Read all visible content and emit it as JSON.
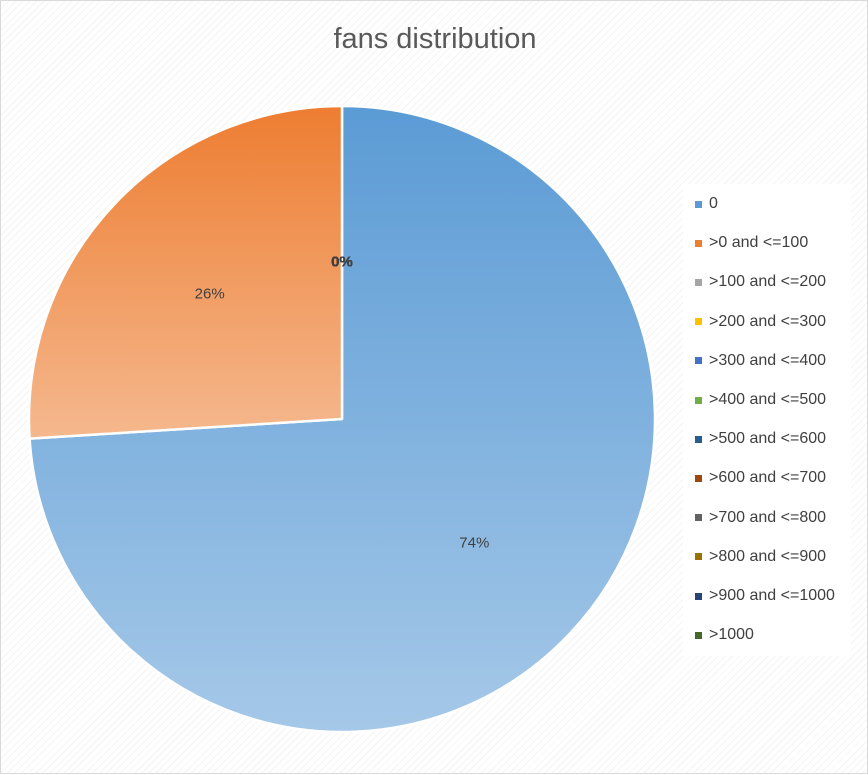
{
  "chart_data": {
    "type": "pie",
    "title": "fans distribution",
    "categories": [
      "0",
      ">0 and <=100",
      ">100 and <=200",
      ">200 and <=300",
      ">300 and <=400",
      ">400 and <=500",
      ">500 and <=600",
      ">600 and <=700",
      ">700 and <=800",
      ">800 and <=900",
      ">900 and <=1000",
      ">1000"
    ],
    "values": [
      74,
      26,
      0,
      0,
      0,
      0,
      0,
      0,
      0,
      0,
      0,
      0
    ],
    "data_labels": [
      "74%",
      "26%",
      "0%",
      "0%",
      "0%",
      "0%",
      "0%",
      "0%",
      "0%",
      "0%",
      "0%",
      "0%"
    ],
    "colors": [
      "#5b9bd5",
      "#ed7d31",
      "#a5a5a5",
      "#ffc000",
      "#4472c4",
      "#70ad47",
      "#255e91",
      "#9e480e",
      "#636363",
      "#997300",
      "#264478",
      "#43682b"
    ],
    "legend_position": "right"
  }
}
